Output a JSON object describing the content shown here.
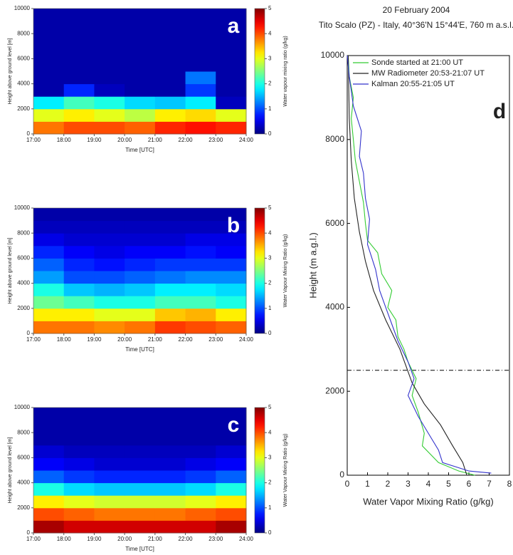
{
  "chart_data": [
    {
      "type": "heatmap",
      "panel_label": "a",
      "x_label": "Time [UTC]",
      "y_label": "Height above ground level [m]",
      "colorbar_label": "Water vapour mixing ratio (g/kg)",
      "x_edges": [
        17,
        18,
        19,
        20,
        21,
        22,
        23,
        24
      ],
      "y_edges": [
        0,
        1000,
        2000,
        3000,
        4000,
        5000,
        6000,
        7000,
        8000,
        9000,
        10000
      ],
      "z": [
        [
          3.8,
          4,
          4,
          3.9,
          4.2,
          4.3,
          4.2
        ],
        [
          3,
          3.2,
          3,
          2.8,
          3.2,
          3.3,
          3
        ],
        [
          1.8,
          2.2,
          2,
          1.7,
          1.6,
          1.8,
          0.3
        ],
        [
          0.2,
          0.8,
          0.3,
          0.2,
          0.2,
          0.9,
          0.2
        ],
        [
          0.2,
          0.2,
          0.2,
          0.2,
          0.2,
          1.2,
          0.2
        ],
        [
          0.2,
          0.2,
          0.2,
          0.2,
          0.2,
          0.2,
          0.2
        ],
        [
          0.2,
          0.2,
          0.2,
          0.2,
          0.2,
          0.2,
          0.2
        ],
        [
          0.2,
          0.2,
          0.2,
          0.2,
          0.2,
          0.2,
          0.2
        ],
        [
          0.2,
          0.2,
          0.2,
          0.2,
          0.2,
          0.2,
          0.2
        ],
        [
          0.2,
          0.2,
          0.2,
          0.2,
          0.2,
          0.2,
          0.2
        ]
      ],
      "xlim": [
        17,
        24
      ],
      "xticks": [
        {
          "value": 17,
          "label": "17:00"
        },
        {
          "value": 18,
          "label": "18:00"
        },
        {
          "value": 19,
          "label": "19:00"
        },
        {
          "value": 20,
          "label": "20:00"
        },
        {
          "value": 21,
          "label": "21:00"
        },
        {
          "value": 22,
          "label": "22:00"
        },
        {
          "value": 23,
          "label": "23:00"
        },
        {
          "value": 24,
          "label": "24:00"
        }
      ],
      "ylim": [
        0,
        10000
      ],
      "yticks": [
        0,
        2000,
        4000,
        6000,
        8000,
        10000
      ],
      "zlim": [
        0,
        5
      ],
      "zticks": [
        0,
        1,
        2,
        3,
        4,
        5
      ],
      "colormap": "jet"
    },
    {
      "type": "heatmap",
      "panel_label": "b",
      "x_label": "Time [UTC]",
      "y_label": "Height above ground level [m]",
      "colorbar_label": "Water Vapour Mixing Ratio (g/kg)",
      "x_edges": [
        17,
        18,
        19,
        20,
        21,
        22,
        23,
        24
      ],
      "y_edges": [
        0,
        1000,
        2000,
        3000,
        4000,
        5000,
        6000,
        7000,
        8000,
        9000,
        10000
      ],
      "z": [
        [
          3.8,
          3.8,
          3.7,
          3.8,
          4.1,
          4,
          3.9
        ],
        [
          3.2,
          3.2,
          3,
          3,
          3.4,
          3.5,
          3.2
        ],
        [
          2.4,
          2.2,
          2,
          2,
          2.2,
          2.2,
          2
        ],
        [
          2,
          1.6,
          1.5,
          1.6,
          1.8,
          1.8,
          1.7
        ],
        [
          1.4,
          1,
          1,
          1.1,
          1.2,
          1.3,
          1.3
        ],
        [
          1.1,
          0.8,
          0.7,
          0.8,
          0.9,
          0.9,
          0.9
        ],
        [
          0.8,
          0.6,
          0.5,
          0.6,
          0.6,
          0.7,
          0.6
        ],
        [
          0.5,
          0.4,
          0.4,
          0.4,
          0.4,
          0.5,
          0.5
        ],
        [
          0.3,
          0.3,
          0.3,
          0.3,
          0.3,
          0.3,
          0.3
        ],
        [
          0.2,
          0.2,
          0.2,
          0.2,
          0.2,
          0.2,
          0.2
        ]
      ],
      "xlim": [
        17,
        24
      ],
      "xticks": [
        {
          "value": 17,
          "label": "17:00"
        },
        {
          "value": 18,
          "label": "18:00"
        },
        {
          "value": 19,
          "label": "19:00"
        },
        {
          "value": 20,
          "label": "20:00"
        },
        {
          "value": 21,
          "label": "21:00"
        },
        {
          "value": 22,
          "label": "22:00"
        },
        {
          "value": 23,
          "label": "23:00"
        },
        {
          "value": 24,
          "label": "24:00"
        }
      ],
      "ylim": [
        0,
        10000
      ],
      "yticks": [
        0,
        2000,
        4000,
        6000,
        8000,
        10000
      ],
      "zlim": [
        0,
        5
      ],
      "zticks": [
        0,
        1,
        2,
        3,
        4,
        5
      ],
      "colormap": "jet"
    },
    {
      "type": "heatmap",
      "panel_label": "c",
      "x_label": "Time [UTC]",
      "y_label": "Height above ground level [m]",
      "colorbar_label": "Water Vapour Mixing Ratio (g/kg)",
      "x_edges": [
        17,
        18,
        19,
        20,
        21,
        22,
        23,
        24
      ],
      "y_edges": [
        0,
        1000,
        2000,
        3000,
        4000,
        5000,
        6000,
        7000,
        8000,
        9000,
        10000
      ],
      "z": [
        [
          4.8,
          4.6,
          4.6,
          4.6,
          4.6,
          4.6,
          4.8
        ],
        [
          4,
          3.9,
          3.8,
          3.8,
          3.8,
          3.9,
          4
        ],
        [
          3.2,
          3,
          2.9,
          2.9,
          2.9,
          3,
          3.2
        ],
        [
          2,
          1.7,
          1.6,
          1.6,
          1.6,
          1.7,
          2
        ],
        [
          1.1,
          0.9,
          0.8,
          0.8,
          0.8,
          0.9,
          1.1
        ],
        [
          0.6,
          0.5,
          0.4,
          0.4,
          0.4,
          0.5,
          0.6
        ],
        [
          0.4,
          0.3,
          0.3,
          0.3,
          0.3,
          0.3,
          0.4
        ],
        [
          0.2,
          0.2,
          0.2,
          0.2,
          0.2,
          0.2,
          0.2
        ],
        [
          0.2,
          0.2,
          0.2,
          0.2,
          0.2,
          0.2,
          0.2
        ],
        [
          0.2,
          0.2,
          0.2,
          0.2,
          0.2,
          0.2,
          0.2
        ]
      ],
      "xlim": [
        17,
        24
      ],
      "xticks": [
        {
          "value": 17,
          "label": "17:00"
        },
        {
          "value": 18,
          "label": "18:00"
        },
        {
          "value": 19,
          "label": "19:00"
        },
        {
          "value": 20,
          "label": "20:00"
        },
        {
          "value": 21,
          "label": "21:00"
        },
        {
          "value": 22,
          "label": "22:00"
        },
        {
          "value": 23,
          "label": "23:00"
        },
        {
          "value": 24,
          "label": "24:00"
        }
      ],
      "ylim": [
        0,
        10000
      ],
      "yticks": [
        0,
        2000,
        4000,
        6000,
        8000,
        10000
      ],
      "zlim": [
        0,
        5
      ],
      "zticks": [
        0,
        1,
        2,
        3,
        4,
        5
      ],
      "colormap": "jet"
    },
    {
      "type": "line",
      "panel_label": "d",
      "title": "20 February 2004",
      "subtitle": "Tito Scalo (PZ) - Italy, 40°36'N 15°44'E, 760 m a.s.l.",
      "x_label": "Water Vapor Mixing Ratio (g/kg)",
      "y_label": "Height (m a.g.l.)",
      "xlim": [
        0,
        8
      ],
      "xticks": [
        0,
        1,
        2,
        3,
        4,
        5,
        6,
        7,
        8
      ],
      "ylim": [
        0,
        10000
      ],
      "yticks": [
        0,
        2000,
        4000,
        6000,
        8000,
        10000
      ],
      "hline": 2500,
      "legend": "top",
      "series": [
        {
          "name": "Sonde started at 21:00 UT",
          "color": "#33cc33",
          "x": [
            6.3,
            5.5,
            4.5,
            3.7,
            3.8,
            3.5,
            3.2,
            3.4,
            3.0,
            2.8,
            2.5,
            2.4,
            2.0,
            2.2,
            1.7,
            1.5,
            1.0,
            0.9,
            0.8,
            0.6,
            0.4,
            0.3,
            0.2,
            0.3,
            0.1,
            0.05
          ],
          "y": [
            0,
            100,
            300,
            700,
            1000,
            1500,
            1900,
            2300,
            2700,
            3000,
            3300,
            3700,
            4000,
            4400,
            4800,
            5300,
            5600,
            6000,
            6500,
            7000,
            7500,
            8000,
            8500,
            9000,
            9500,
            10000
          ]
        },
        {
          "name": "MW Radiometer 20:53-21:07 UT",
          "color": "#222222",
          "x": [
            5.9,
            5.7,
            5.2,
            4.6,
            3.8,
            3.2,
            2.6,
            1.9,
            1.3,
            0.9,
            0.6,
            0.35,
            0.2,
            0.1,
            0.05
          ],
          "y": [
            0,
            300,
            700,
            1200,
            1700,
            2200,
            3000,
            3700,
            4400,
            5100,
            5800,
            6600,
            7500,
            8500,
            10000
          ]
        },
        {
          "name": "Kalman 20:55-21:05 UT",
          "color": "#3333cc",
          "x": [
            7.1,
            6.0,
            4.7,
            4.5,
            4.0,
            3.5,
            3.0,
            3.3,
            3.0,
            2.5,
            2.2,
            1.9,
            1.6,
            1.4,
            1.0,
            1.1,
            0.9,
            0.8,
            0.6,
            0.7,
            0.3,
            0.1,
            0.0
          ],
          "y": [
            50,
            100,
            300,
            600,
            1000,
            1400,
            1900,
            2300,
            2700,
            3200,
            3600,
            4000,
            4400,
            4900,
            5500,
            6100,
            6600,
            7200,
            7600,
            8200,
            8800,
            9500,
            10000
          ]
        }
      ]
    }
  ]
}
